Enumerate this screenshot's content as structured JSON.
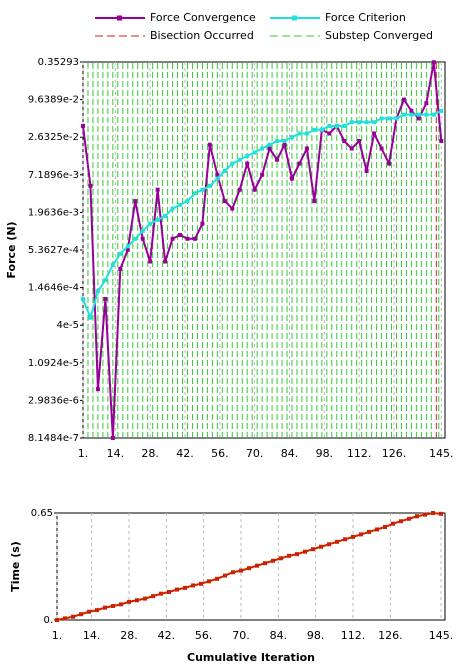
{
  "chart_data": [
    {
      "type": "line",
      "yscale": "log",
      "ylabel": "Force (N)",
      "grid": true,
      "x": [
        1,
        4,
        7,
        10,
        13,
        16,
        19,
        22,
        25,
        28,
        31,
        34,
        37,
        40,
        43,
        46,
        49,
        52,
        55,
        58,
        61,
        64,
        67,
        70,
        73,
        76,
        79,
        82,
        85,
        88,
        91,
        94,
        97,
        100,
        103,
        106,
        109,
        112,
        115,
        118,
        121,
        124,
        127,
        130,
        133,
        136,
        139,
        142,
        145
      ],
      "xlim": [
        1,
        146.5
      ],
      "xticks": [
        {
          "value": 1,
          "label": "1."
        },
        {
          "value": 14,
          "label": "14."
        },
        {
          "value": 28,
          "label": "28."
        },
        {
          "value": 42,
          "label": "42."
        },
        {
          "value": 56,
          "label": "56."
        },
        {
          "value": 70,
          "label": "70."
        },
        {
          "value": 84,
          "label": "84."
        },
        {
          "value": 98,
          "label": "98."
        },
        {
          "value": 112,
          "label": "112."
        },
        {
          "value": 126,
          "label": "126."
        },
        {
          "value": 145,
          "label": "145."
        }
      ],
      "ylim": [
        8.1484e-07,
        0.35293
      ],
      "yticks": [
        {
          "value": 8.1484e-07,
          "label": "8.1484e-7"
        },
        {
          "value": 2.9836e-06,
          "label": "2.9836e-6"
        },
        {
          "value": 1.0924e-05,
          "label": "1.0924e-5"
        },
        {
          "value": 4e-05,
          "label": "4e-5"
        },
        {
          "value": 0.00014646,
          "label": "1.4646e-4"
        },
        {
          "value": 0.00053627,
          "label": "5.3627e-4"
        },
        {
          "value": 0.0019636,
          "label": "1.9636e-3"
        },
        {
          "value": 0.0071896,
          "label": "7.1896e-3"
        },
        {
          "value": 0.026325,
          "label": "2.6325e-2"
        },
        {
          "value": 0.096389,
          "label": "9.6389e-2"
        },
        0.35293
      ],
      "series": [
        {
          "name": "Force Convergence",
          "color": "#990099",
          "marker": true,
          "values": [
            0.0388,
            0.0049,
            4.4e-06,
            9.9e-05,
            8.1484e-07,
            0.00028,
            0.00054,
            0.0029,
            0.00079,
            0.00036,
            0.0043,
            0.00036,
            0.00079,
            0.0009,
            0.00079,
            0.00079,
            0.00133,
            0.0203,
            0.0072,
            0.0029,
            0.00224,
            0.0043,
            0.0106,
            0.0043,
            0.0072,
            0.0178,
            0.0121,
            0.0203,
            0.0063,
            0.0106,
            0.0178,
            0.0029,
            0.034,
            0.0299,
            0.0388,
            0.0231,
            0.0178,
            0.0231,
            0.0082,
            0.0299,
            0.0178,
            0.0106,
            0.0503,
            0.0964,
            0.0652,
            0.0503,
            0.085,
            0.35,
            0.0231
          ]
        },
        {
          "name": "Force Criterion",
          "color": "#22e0e0",
          "marker": true,
          "values": [
            9.9e-05,
            5.2e-05,
            0.000129,
            0.00019,
            0.00032,
            0.00047,
            0.00061,
            0.00079,
            0.00103,
            0.00133,
            0.00152,
            0.00173,
            0.00224,
            0.00255,
            0.0029,
            0.0038,
            0.0043,
            0.0049,
            0.0063,
            0.0082,
            0.0106,
            0.0121,
            0.0138,
            0.0156,
            0.0178,
            0.0203,
            0.0231,
            0.0231,
            0.0263,
            0.0299,
            0.0299,
            0.034,
            0.034,
            0.0388,
            0.0388,
            0.0388,
            0.0442,
            0.0442,
            0.0442,
            0.0442,
            0.0503,
            0.0503,
            0.0503,
            0.0573,
            0.0573,
            0.0573,
            0.0573,
            0.0573,
            0.0652
          ]
        }
      ],
      "vlines": [
        {
          "name": "Bisection Occurred",
          "color": "#cc2222",
          "x": [
            143
          ]
        },
        {
          "name": "Substep Converged",
          "color": "#33cc33",
          "x": [
            3,
            5,
            7,
            9,
            11,
            13,
            15,
            17,
            19,
            21,
            23,
            25,
            27,
            29,
            31,
            33,
            35,
            37,
            39,
            41,
            43,
            45,
            47,
            49,
            51,
            53,
            55,
            57,
            59,
            61,
            63,
            65,
            67,
            69,
            71,
            73,
            75,
            77,
            79,
            81,
            83,
            85,
            87,
            89,
            91,
            93,
            95,
            97,
            99,
            101,
            103,
            105,
            107,
            109,
            111,
            113,
            115,
            117,
            119,
            121,
            123,
            125,
            127,
            129,
            131,
            133,
            135,
            137,
            139,
            141,
            144
          ]
        }
      ]
    },
    {
      "type": "line",
      "ylabel": "Time (s)",
      "xlabel": "Cumulative Iteration",
      "grid": true,
      "x": [
        1,
        4,
        7,
        10,
        13,
        16,
        19,
        22,
        25,
        28,
        31,
        34,
        37,
        40,
        43,
        46,
        49,
        52,
        55,
        58,
        61,
        64,
        67,
        70,
        73,
        76,
        79,
        82,
        85,
        88,
        91,
        94,
        97,
        100,
        103,
        106,
        109,
        112,
        115,
        118,
        121,
        124,
        127,
        130,
        133,
        136,
        139,
        142,
        145
      ],
      "xlim": [
        1,
        146.5
      ],
      "xticks": [
        {
          "value": 1,
          "label": "1."
        },
        {
          "value": 14,
          "label": "14."
        },
        {
          "value": 28,
          "label": "28."
        },
        {
          "value": 42,
          "label": "42."
        },
        {
          "value": 56,
          "label": "56."
        },
        {
          "value": 70,
          "label": "70."
        },
        {
          "value": 84,
          "label": "84."
        },
        {
          "value": 98,
          "label": "98."
        },
        {
          "value": 112,
          "label": "112."
        },
        {
          "value": 126,
          "label": "126."
        },
        {
          "value": 145,
          "label": "145."
        }
      ],
      "ylim": [
        0,
        0.65
      ],
      "yticks": [
        {
          "value": 0,
          "label": "0."
        },
        0.65
      ],
      "series": [
        {
          "color": "#cc2200",
          "marker": true,
          "values": [
            0,
            0.01,
            0.02,
            0.035,
            0.05,
            0.06,
            0.075,
            0.085,
            0.095,
            0.11,
            0.12,
            0.13,
            0.145,
            0.16,
            0.17,
            0.185,
            0.195,
            0.21,
            0.22,
            0.235,
            0.25,
            0.27,
            0.29,
            0.3,
            0.315,
            0.33,
            0.345,
            0.36,
            0.375,
            0.39,
            0.4,
            0.415,
            0.43,
            0.445,
            0.46,
            0.475,
            0.49,
            0.505,
            0.52,
            0.535,
            0.55,
            0.565,
            0.585,
            0.6,
            0.615,
            0.63,
            0.64,
            0.65,
            0.645
          ]
        }
      ]
    }
  ]
}
